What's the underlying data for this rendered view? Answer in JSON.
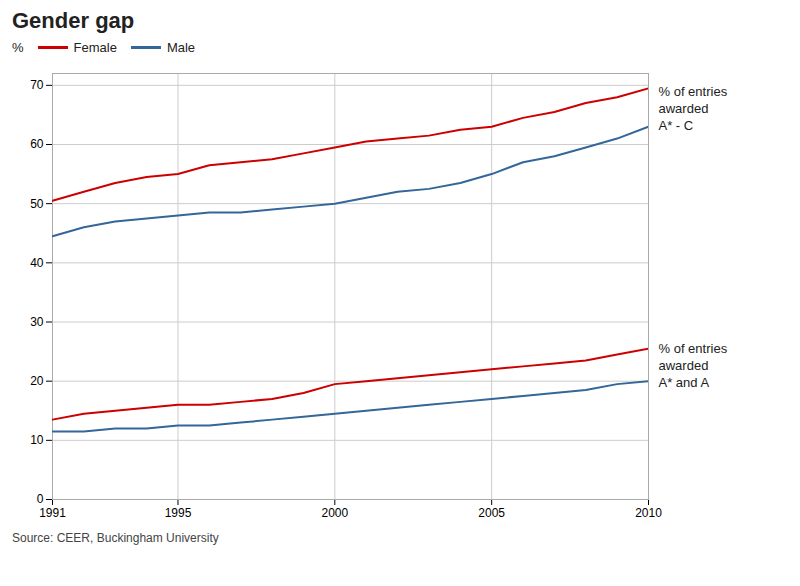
{
  "chart_data": {
    "type": "line",
    "title": "Gender gap",
    "ylabel": "%",
    "source": "Source: CEER, Buckingham University",
    "x": [
      1991,
      1992,
      1993,
      1994,
      1995,
      1996,
      1997,
      1998,
      1999,
      2000,
      2001,
      2002,
      2003,
      2004,
      2005,
      2006,
      2007,
      2008,
      2009,
      2010
    ],
    "series": [
      {
        "name": "Female",
        "color": "#cc0000",
        "values": [
          50.5,
          52.0,
          53.5,
          54.5,
          55.0,
          56.5,
          57.0,
          57.5,
          58.5,
          59.5,
          60.5,
          61.0,
          61.5,
          62.5,
          63.0,
          64.5,
          65.5,
          67.0,
          68.0,
          69.5
        ]
      },
      {
        "name": "Male",
        "color": "#336699",
        "values": [
          44.5,
          46.0,
          47.0,
          47.5,
          48.0,
          48.5,
          48.5,
          49.0,
          49.5,
          50.0,
          51.0,
          52.0,
          52.5,
          53.5,
          55.0,
          57.0,
          58.0,
          59.5,
          61.0,
          63.0
        ]
      },
      {
        "name": "Female",
        "color": "#cc0000",
        "values": [
          13.5,
          14.5,
          15.0,
          15.5,
          16.0,
          16.0,
          16.5,
          17.0,
          18.0,
          19.5,
          20.0,
          20.5,
          21.0,
          21.5,
          22.0,
          22.5,
          23.0,
          23.5,
          24.5,
          25.5
        ]
      },
      {
        "name": "Male",
        "color": "#336699",
        "values": [
          11.5,
          11.5,
          12.0,
          12.0,
          12.5,
          12.5,
          13.0,
          13.5,
          14.0,
          14.5,
          15.0,
          15.5,
          16.0,
          16.5,
          17.0,
          17.5,
          18.0,
          18.5,
          19.5,
          20.0
        ]
      }
    ],
    "annotations": [
      "% of entries\nawarded\nA* - C",
      "% of entries\nawarded\nA* and A"
    ],
    "xlim": [
      1991,
      2010
    ],
    "xticks": [
      1991,
      1995,
      2000,
      2005,
      2010
    ],
    "ylim": [
      0,
      72
    ],
    "yticks": [
      0,
      10,
      20,
      30,
      40,
      50,
      60,
      70
    ],
    "grid": true,
    "legend": "top"
  }
}
